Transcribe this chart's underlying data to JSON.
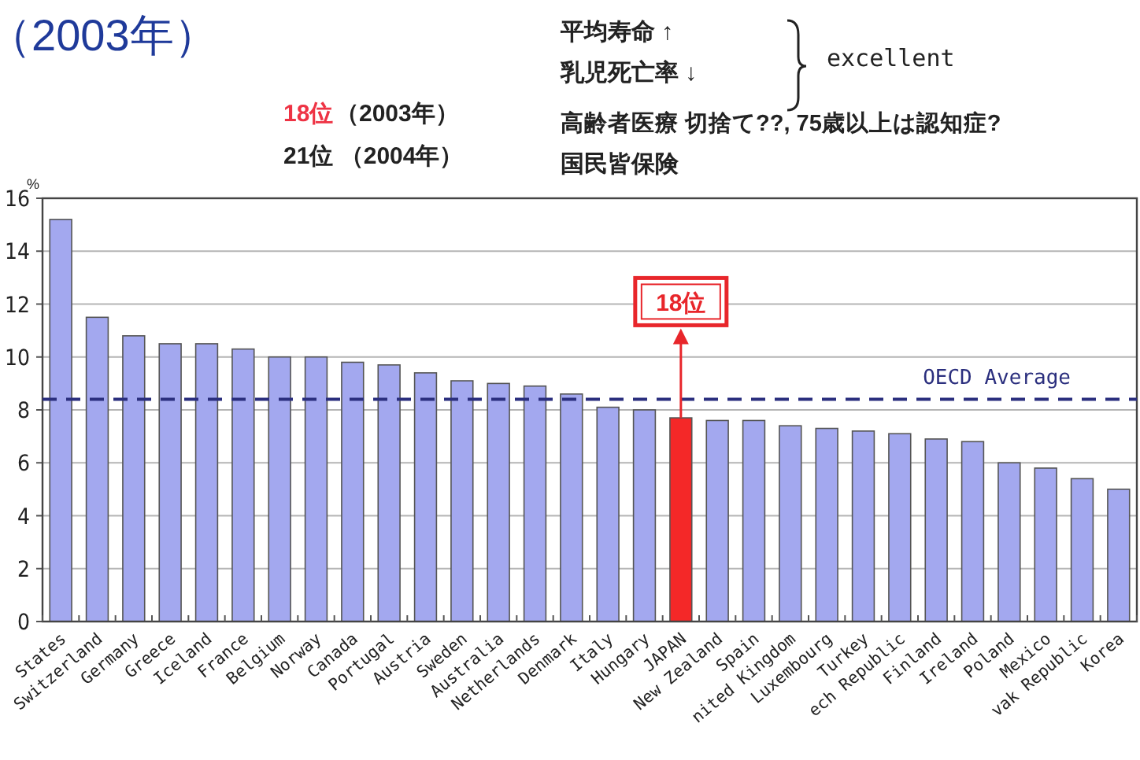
{
  "chart_data": {
    "type": "bar",
    "title": "（2003年）",
    "ylabel": "%",
    "categories": [
      "States",
      "Switzerland",
      "Germany",
      "Greece",
      "Iceland",
      "France",
      "Belgium",
      "Norway",
      "Canada",
      "Portugal",
      "Austria",
      "Sweden",
      "Australia",
      "Netherlands",
      "Denmark",
      "Italy",
      "Hungary",
      "JAPAN",
      "New Zealand",
      "Spain",
      "nited Kingdom",
      "Luxembourg",
      "Turkey",
      "ech Republic",
      "Finland",
      "Ireland",
      "Poland",
      "Mexico",
      "vak Republic",
      "Korea"
    ],
    "values": [
      15.2,
      11.5,
      10.8,
      10.5,
      10.5,
      10.3,
      10.0,
      10.0,
      9.8,
      9.7,
      9.4,
      9.1,
      9.0,
      8.9,
      8.6,
      8.1,
      8.0,
      7.7,
      7.6,
      7.6,
      7.4,
      7.3,
      7.2,
      7.1,
      6.9,
      6.8,
      6.0,
      5.8,
      5.4,
      5.0
    ],
    "colors": [
      "#a3a8ef",
      "#a3a8ef",
      "#a3a8ef",
      "#a3a8ef",
      "#a3a8ef",
      "#a3a8ef",
      "#a3a8ef",
      "#a3a8ef",
      "#a3a8ef",
      "#a3a8ef",
      "#a3a8ef",
      "#a3a8ef",
      "#a3a8ef",
      "#a3a8ef",
      "#a3a8ef",
      "#a3a8ef",
      "#a3a8ef",
      "#f42828",
      "#a3a8ef",
      "#a3a8ef",
      "#a3a8ef",
      "#a3a8ef",
      "#a3a8ef",
      "#a3a8ef",
      "#a3a8ef",
      "#a3a8ef",
      "#a3a8ef",
      "#a3a8ef",
      "#a3a8ef",
      "#a3a8ef"
    ],
    "ylim": [
      0,
      16
    ],
    "yticks": [
      0,
      2,
      4,
      6,
      8,
      10,
      12,
      14,
      16
    ],
    "grid": "y",
    "ref_lines": [
      {
        "axis": "y",
        "value": 8.4,
        "label": "OECD Average",
        "color": "#2b2f7e",
        "line_style": "dashed"
      }
    ],
    "annotations": [
      {
        "text": "18位",
        "x": "JAPAN",
        "y": 7.7
      },
      "18位",
      "（2003年）",
      "21位 （2004年）",
      "平均寿命 ↑",
      "乳児死亡率 ↓",
      "excellent",
      "高齢者医療 切捨て??, 75歳以上は認知症?",
      "国民皆保険"
    ]
  }
}
